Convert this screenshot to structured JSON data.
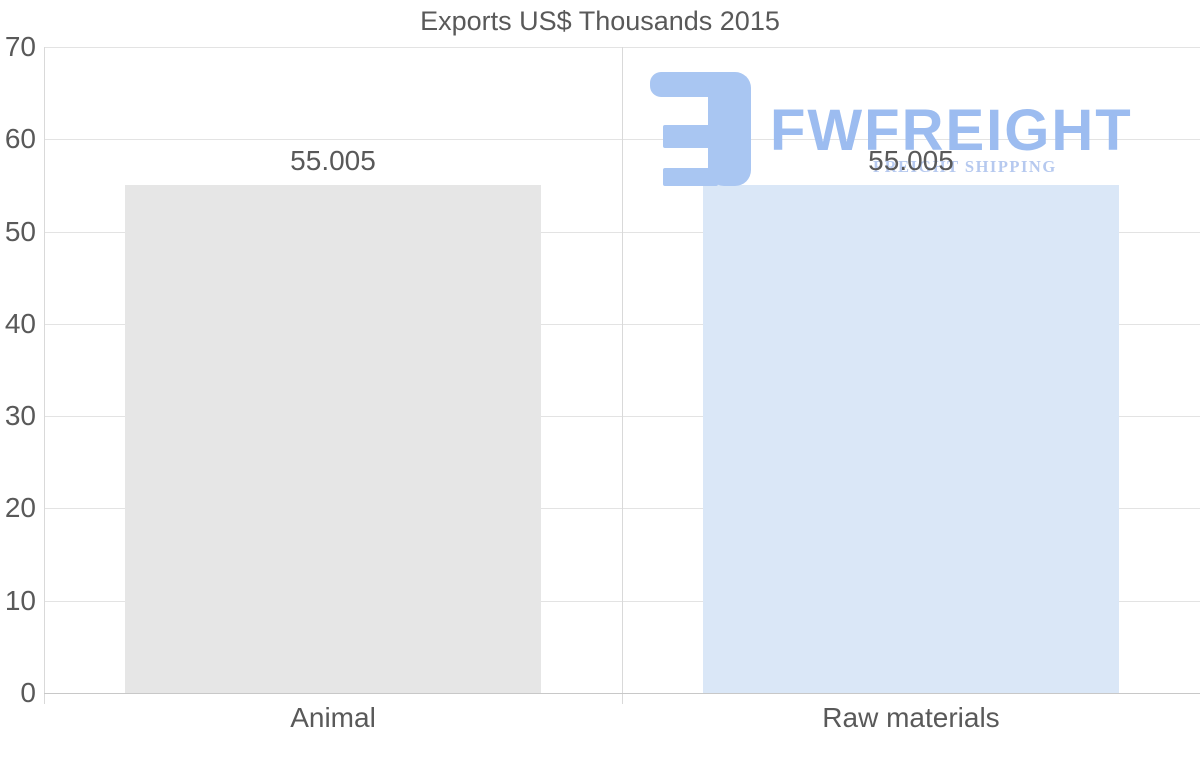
{
  "page": {
    "background_color": "#ffffff",
    "text_color": "#595959"
  },
  "chart_data": {
    "type": "bar",
    "title": "Exports US$ Thousands 2015",
    "categories": [
      "Animal",
      "Raw materials"
    ],
    "values": [
      55.005,
      55.005
    ],
    "value_labels": [
      "55.005",
      "55.005"
    ],
    "xlabel": "",
    "ylabel": "",
    "ylim": [
      0,
      70
    ],
    "yticks": [
      0,
      10,
      20,
      30,
      40,
      50,
      60,
      70
    ],
    "grid": "horizontal",
    "legend": "none",
    "bar_colors": [
      "#e6e6e6",
      "#dae7f7"
    ],
    "gridline_color": "#e3e3e3",
    "baseline_color": "#c8c8c8",
    "axis_line_color": "#d9d9d9",
    "label_color": "#595959"
  },
  "watermark": {
    "brand": "FWFREIGHT",
    "tagline": "FREIGHT SHIPPING",
    "brand_color": "#9cbcf0",
    "tagline_color": "#b6c9ef",
    "monogram_color": "#a9c6f2",
    "monogram_icon": "fwfreight-monogram-icon"
  }
}
